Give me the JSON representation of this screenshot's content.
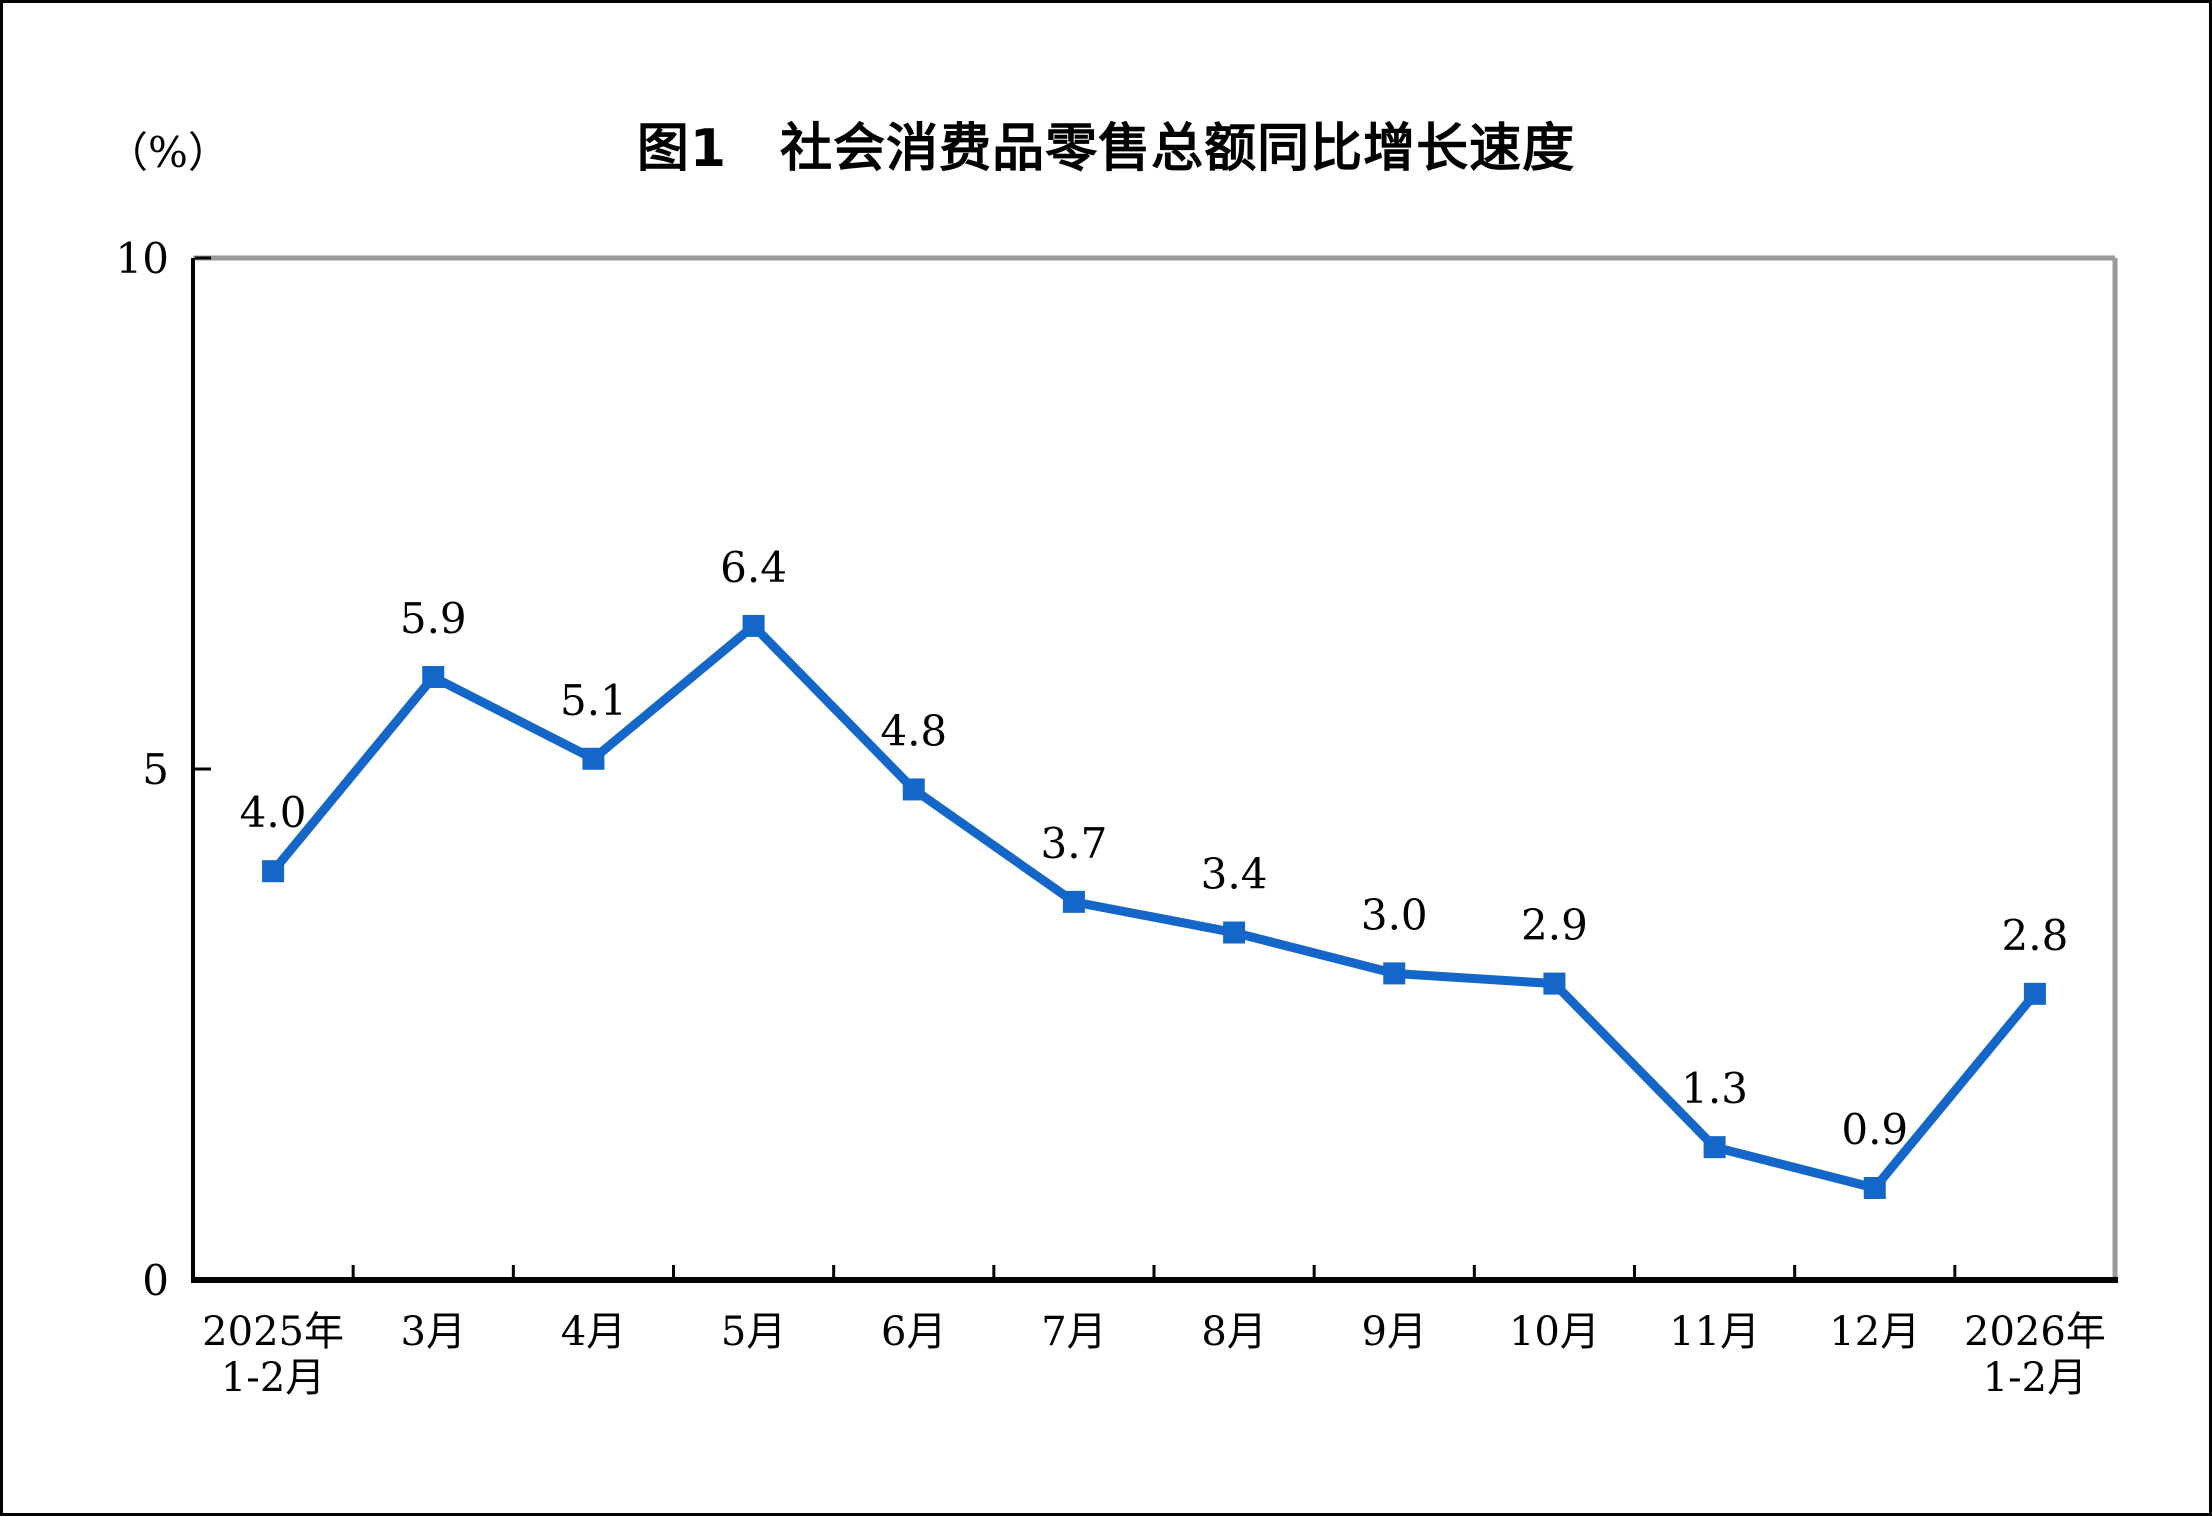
{
  "title": "图1　社会消费品零售总额同比增长速度",
  "unit_label": "（%）",
  "colors": {
    "series_line": "#1467C8",
    "axis": "#000000",
    "plot_border": "#999999",
    "text": "#000000"
  },
  "chart_data": {
    "type": "line",
    "title": "图1　社会消费品零售总额同比增长速度",
    "ylabel": "（%）",
    "xlabel": "",
    "categories": [
      "2025年\n1-2月",
      "3月",
      "4月",
      "5月",
      "6月",
      "7月",
      "8月",
      "9月",
      "10月",
      "11月",
      "12月",
      "2026年\n1-2月"
    ],
    "values": [
      4.0,
      5.9,
      5.1,
      6.4,
      4.8,
      3.7,
      3.4,
      3.0,
      2.9,
      1.3,
      0.9,
      2.8
    ],
    "value_label_decimals": 1,
    "ylim": [
      0,
      10
    ],
    "yticks": [
      0,
      5,
      10
    ],
    "grid": false,
    "legend": "none",
    "marker": "square"
  }
}
